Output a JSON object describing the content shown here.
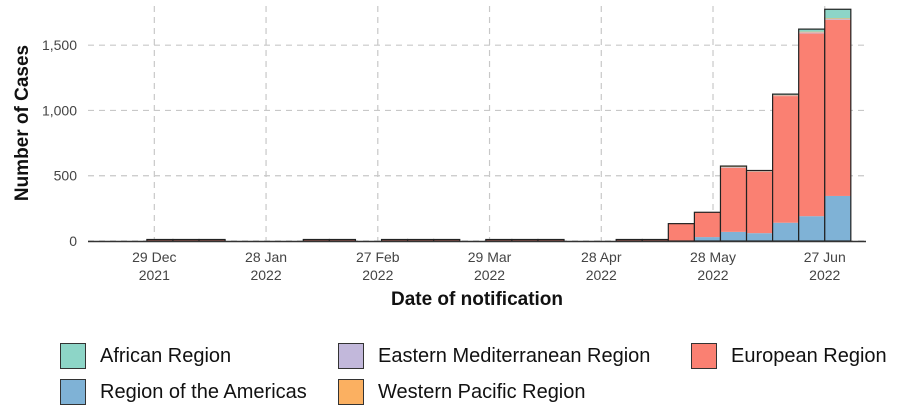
{
  "chart_data": {
    "type": "bar",
    "stacked": true,
    "xlabel": "Date of notification",
    "ylabel": "Number of Cases",
    "ylim": [
      0,
      1800
    ],
    "yticks": [
      0,
      500,
      1000,
      1500
    ],
    "ytick_labels": [
      "0",
      "500",
      "1,000",
      "1,500"
    ],
    "xticks": [
      {
        "date": "2021-12-29",
        "label_line1": "29 Dec",
        "label_line2": "2021"
      },
      {
        "date": "2022-01-28",
        "label_line1": "28 Jan",
        "label_line2": "2022"
      },
      {
        "date": "2022-02-27",
        "label_line1": "27 Feb",
        "label_line2": "2022"
      },
      {
        "date": "2022-03-29",
        "label_line1": "29 Mar",
        "label_line2": "2022"
      },
      {
        "date": "2022-04-28",
        "label_line1": "28 Apr",
        "label_line2": "2022"
      },
      {
        "date": "2022-05-28",
        "label_line1": "28 May",
        "label_line2": "2022"
      },
      {
        "date": "2022-06-27",
        "label_line1": "27 Jun",
        "label_line2": "2022"
      }
    ],
    "grid": true,
    "legend_position": "bottom",
    "week_starts": [
      "2021-12-27",
      "2022-01-03",
      "2022-01-10",
      "2022-01-17",
      "2022-01-24",
      "2022-01-31",
      "2022-02-07",
      "2022-02-14",
      "2022-02-21",
      "2022-02-28",
      "2022-03-07",
      "2022-03-14",
      "2022-03-21",
      "2022-03-28",
      "2022-04-04",
      "2022-04-11",
      "2022-04-18",
      "2022-04-25",
      "2022-05-02",
      "2022-05-09",
      "2022-05-16",
      "2022-05-23",
      "2022-05-30",
      "2022-06-06",
      "2022-06-13",
      "2022-06-20",
      "2022-06-27"
    ],
    "series": [
      {
        "name": "Region of the Americas",
        "color": "#7fb2d6",
        "values": [
          0,
          0,
          0,
          0,
          0,
          0,
          0,
          0,
          0,
          0,
          0,
          0,
          0,
          0,
          0,
          0,
          0,
          0,
          0,
          0,
          3,
          30,
          70,
          60,
          140,
          190,
          345
        ]
      },
      {
        "name": "European Region",
        "color": "#fa8072",
        "values": [
          2,
          2,
          2,
          0,
          0,
          0,
          2,
          2,
          0,
          2,
          2,
          2,
          0,
          2,
          2,
          2,
          0,
          0,
          2,
          10,
          130,
          190,
          490,
          470,
          970,
          1400,
          1350
        ]
      },
      {
        "name": "Eastern Mediterranean Region",
        "color": "#c2b8db",
        "values": [
          0,
          0,
          0,
          0,
          0,
          0,
          0,
          0,
          0,
          0,
          0,
          0,
          0,
          0,
          0,
          0,
          0,
          0,
          0,
          0,
          0,
          0,
          5,
          3,
          5,
          8,
          5
        ]
      },
      {
        "name": "Western Pacific Region",
        "color": "#fbb061",
        "values": [
          0,
          0,
          0,
          0,
          0,
          0,
          0,
          0,
          0,
          0,
          0,
          0,
          0,
          0,
          0,
          0,
          0,
          0,
          0,
          0,
          0,
          0,
          4,
          3,
          4,
          5,
          5
        ]
      },
      {
        "name": "African Region",
        "color": "#8dd5c7",
        "values": [
          0,
          0,
          0,
          0,
          0,
          0,
          0,
          0,
          0,
          0,
          0,
          0,
          0,
          0,
          0,
          0,
          0,
          0,
          0,
          0,
          0,
          0,
          5,
          4,
          6,
          20,
          70
        ]
      }
    ]
  },
  "legend": {
    "african": {
      "label": "African Region",
      "color": "#8dd5c7"
    },
    "eastern_mediterranean": {
      "label": "Eastern Mediterranean Region",
      "color": "#c2b8db"
    },
    "european": {
      "label": "European Region",
      "color": "#fa8072"
    },
    "americas": {
      "label": "Region of the Americas",
      "color": "#7fb2d6"
    },
    "western_pacific": {
      "label": "Western Pacific Region",
      "color": "#fbb061"
    }
  }
}
